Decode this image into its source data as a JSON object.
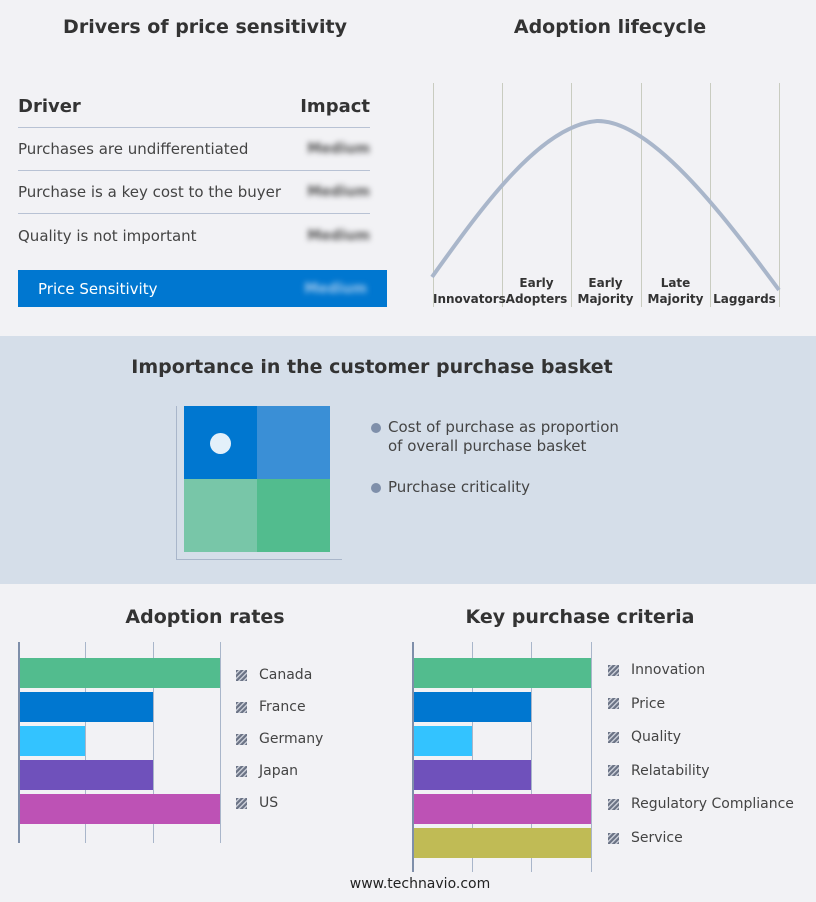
{
  "drivers": {
    "title": "Drivers of price sensitivity",
    "col_driver": "Driver",
    "col_impact": "Impact",
    "rows": [
      {
        "driver": "Purchases are undifferentiated",
        "impact": "Medium"
      },
      {
        "driver": "Purchase is a key cost to the buyer",
        "impact": "Medium"
      },
      {
        "driver": "Quality is not important",
        "impact": "Medium"
      }
    ],
    "summary": {
      "label": "Price Sensitivity",
      "impact": "Medium",
      "color": "#0077d0"
    }
  },
  "lifecycle": {
    "title": "Adoption lifecycle",
    "stages": [
      [
        "Innovators"
      ],
      [
        "Early",
        "Adopters"
      ],
      [
        "Early",
        "Majority"
      ],
      [
        "Late",
        "Majority"
      ],
      [
        "Laggards"
      ]
    ],
    "highlighted_stage": "Early Majority"
  },
  "basket": {
    "title": "Importance in the customer purchase basket",
    "legend": [
      "Cost of purchase as proportion of overall purchase basket",
      "Purchase criticality"
    ],
    "position": "high cost proportion, low criticality",
    "quadrant_colors": [
      "#0077d0",
      "#3a8fd6",
      "#78c6a8",
      "#52bc8e"
    ]
  },
  "chart_data": [
    {
      "type": "bar",
      "orientation": "horizontal",
      "title": "Adoption rates",
      "categories": [
        "Canada",
        "France",
        "Germany",
        "Japan",
        "US"
      ],
      "values": [
        3,
        2,
        1,
        2,
        3
      ],
      "xlim": [
        0,
        3
      ],
      "grid": true,
      "legend": "right",
      "colors": [
        "#52bc8e",
        "#0077d0",
        "#33c3ff",
        "#6f51bb",
        "#bd52b5"
      ]
    },
    {
      "type": "bar",
      "orientation": "horizontal",
      "title": "Key purchase criteria",
      "categories": [
        "Innovation",
        "Price",
        "Quality",
        "Relatability",
        "Regulatory Compliance",
        "Service"
      ],
      "values": [
        3,
        2,
        1,
        2,
        3,
        3
      ],
      "xlim": [
        0,
        3
      ],
      "grid": true,
      "legend": "right",
      "colors": [
        "#52bc8e",
        "#0077d0",
        "#33c3ff",
        "#6f51bb",
        "#bd52b5",
        "#c0bb55"
      ]
    }
  ],
  "footer": "www.technavio.com"
}
